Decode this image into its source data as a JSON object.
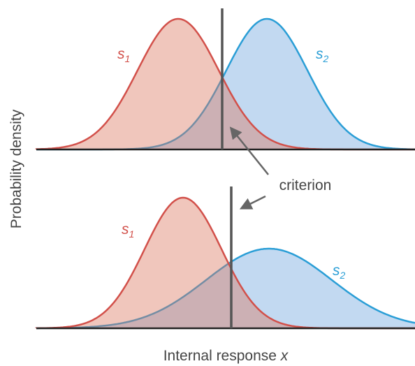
{
  "y_axis_label": "Probability density",
  "x_axis_label": {
    "text": "Internal response ",
    "variable": "x"
  },
  "annotation": "criterion",
  "top_panel": {
    "s1": {
      "symbol": "s",
      "subscript": "1"
    },
    "s2": {
      "symbol": "s",
      "subscript": "2"
    }
  },
  "bottom_panel": {
    "s1": {
      "symbol": "s",
      "subscript": "1"
    },
    "s2": {
      "symbol": "s",
      "subscript": "2"
    }
  }
}
